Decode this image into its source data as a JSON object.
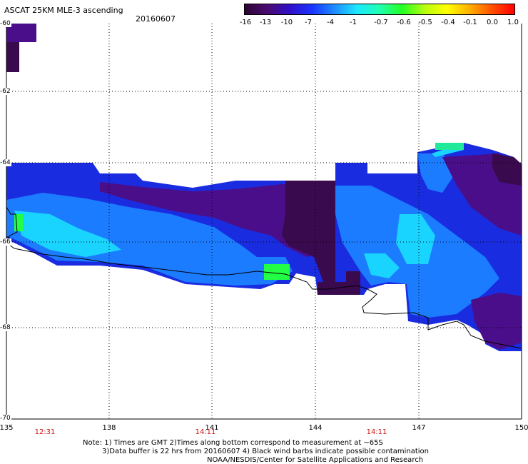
{
  "header": {
    "title": "ASCAT 25KM MLE-3 ascending",
    "date": "20160607"
  },
  "colorbar": {
    "tick_labels": [
      "-16",
      "-13",
      "-10",
      "-7",
      "-4",
      "-1",
      "-0.7",
      "-0.6",
      "-0.5",
      "-0.4",
      "-0.1",
      "0.0",
      "1.0"
    ],
    "gradient_colors": [
      "#2a0530",
      "#4a0a70",
      "#3010c8",
      "#1a34ff",
      "#1f8cff",
      "#1ce8ff",
      "#20ffb0",
      "#22ff22",
      "#b8ff10",
      "#ffff00",
      "#ffb000",
      "#ff5000",
      "#ff0000"
    ]
  },
  "axes": {
    "latitudes": [
      "-60",
      "-62",
      "-64",
      "-66",
      "-68",
      "-70"
    ],
    "longitudes": [
      "135",
      "138",
      "141",
      "144",
      "147",
      "150"
    ]
  },
  "pass_times": [
    "12:31",
    "14:11",
    "14:11"
  ],
  "notes": {
    "line1": "Note: 1) Times are GMT 2)Times along bottom correspond to measurement at ~65S",
    "line2": "3)Data buffer is 22 hrs from 20160607 4) Black wind barbs indicate possible contamination",
    "line3": "NOAA/NESDIS/Center for Satellite Applications and Research"
  },
  "colors": {
    "dark_purple": "#3a0a4e",
    "purple": "#4a0e8a",
    "blue": "#1a2ce0",
    "light_blue": "#1c7cff",
    "cyan": "#18d4ff",
    "green": "#22ff44",
    "coast": "#000000",
    "grid": "#000000",
    "time_label": "#d01010"
  }
}
